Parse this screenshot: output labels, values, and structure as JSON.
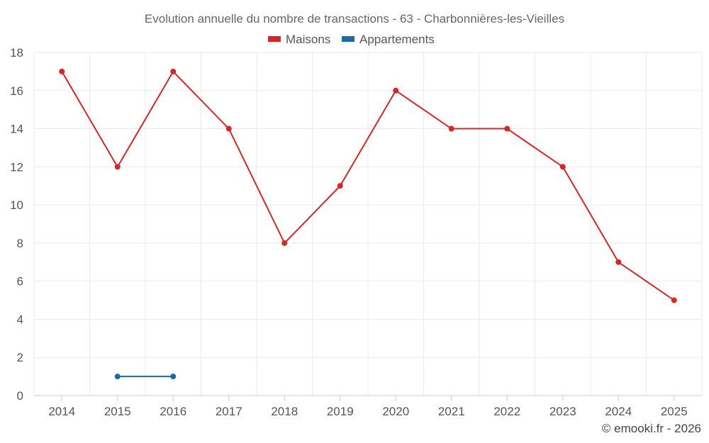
{
  "chart_data": {
    "type": "line",
    "title": "Evolution annuelle du nombre de transactions - 63 - Charbonnières-les-Vieilles",
    "xlabel": "",
    "ylabel": "",
    "x": [
      "2014",
      "2015",
      "2016",
      "2017",
      "2018",
      "2019",
      "2020",
      "2021",
      "2022",
      "2023",
      "2024",
      "2025"
    ],
    "ylim": [
      0,
      18
    ],
    "yticks": [
      0,
      2,
      4,
      6,
      8,
      10,
      12,
      14,
      16,
      18
    ],
    "grid": true,
    "legend": "top-center",
    "series": [
      {
        "name": "Maisons",
        "color": "#d62728",
        "values": [
          17,
          12,
          17,
          14,
          8,
          11,
          16,
          14,
          14,
          12,
          7,
          5
        ]
      },
      {
        "name": "Appartements",
        "color": "#1f6aa5",
        "values": [
          null,
          1,
          1,
          null,
          null,
          null,
          null,
          null,
          null,
          null,
          null,
          null
        ]
      }
    ]
  },
  "credit": "© emooki.fr - 2026"
}
